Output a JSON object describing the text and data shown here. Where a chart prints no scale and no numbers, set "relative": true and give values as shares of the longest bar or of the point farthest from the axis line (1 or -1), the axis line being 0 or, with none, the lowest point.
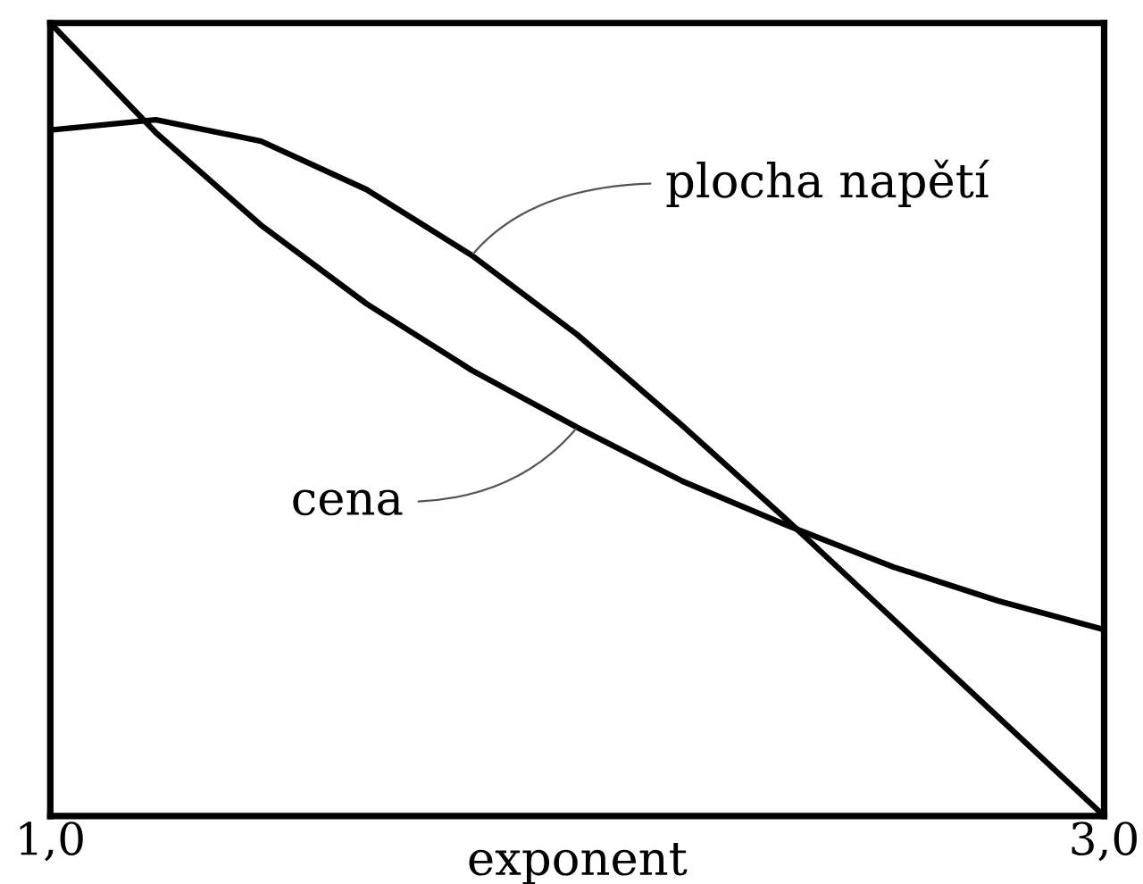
{
  "chart_data": {
    "type": "line",
    "relative": true,
    "xlabel": "exponent",
    "x": [
      1.0,
      1.2,
      1.4,
      1.6,
      1.8,
      2.0,
      2.2,
      2.4,
      2.6,
      2.8,
      3.0
    ],
    "xlim": [
      1.0,
      3.0
    ],
    "xticks": [
      {
        "value": 1.0,
        "label": "1,0"
      },
      {
        "value": 3.0,
        "label": "3,0"
      }
    ],
    "series": [
      {
        "color": "#000000",
        "values": [
          0.865,
          0.878,
          0.851,
          0.79,
          0.707,
          0.607,
          0.492,
          0.372,
          0.248,
          0.124,
          0
        ]
      },
      {
        "color": "#000000",
        "values": [
          1.0,
          0.862,
          0.745,
          0.646,
          0.562,
          0.49,
          0.422,
          0.366,
          0.314,
          0.271,
          0.235
        ]
      }
    ],
    "annotations": [
      {
        "text": "plocha napětí",
        "x": 1.8,
        "y": 0.707
      },
      {
        "text": "cena",
        "x": 2.0,
        "y": 0.49
      }
    ]
  }
}
